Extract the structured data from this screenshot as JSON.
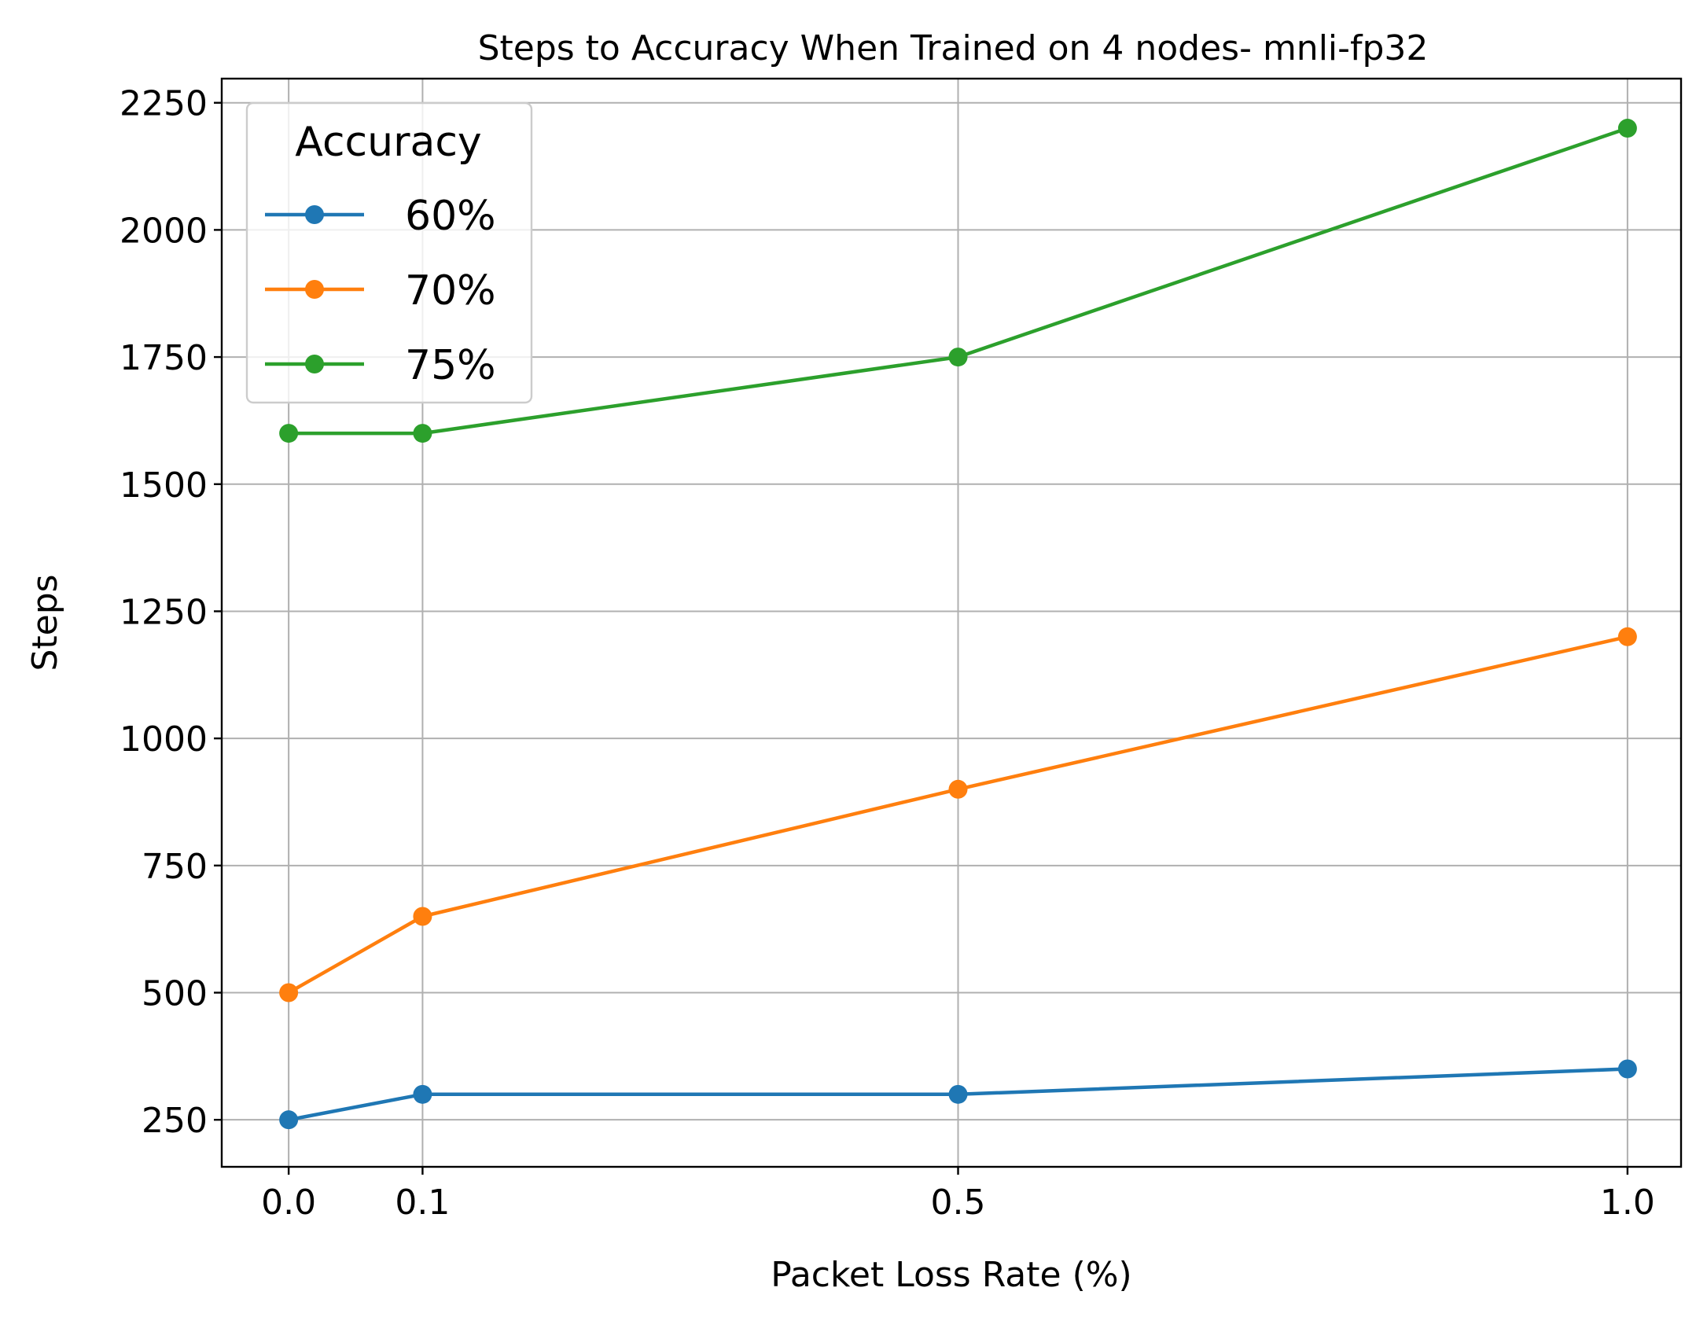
{
  "chart_data": {
    "type": "line",
    "title": "Steps to Accuracy When Trained on 4 nodes- mnli-fp32",
    "xlabel": "Packet Loss Rate (%)",
    "ylabel": "Steps",
    "x": [
      0.0,
      0.1,
      0.5,
      1.0
    ],
    "x_tick_labels": [
      "0.0",
      "0.1",
      "0.5",
      "1.0"
    ],
    "xlim": [
      -0.05,
      1.04
    ],
    "ylim": [
      157.5,
      2297.5
    ],
    "y_ticks": [
      250,
      500,
      750,
      1000,
      1250,
      1500,
      1750,
      2000,
      2250
    ],
    "y_tick_labels": [
      "250",
      "500",
      "750",
      "1000",
      "1250",
      "1500",
      "1750",
      "2000",
      "2250"
    ],
    "grid": true,
    "legend": {
      "title": "Accuracy",
      "placement": "top-left"
    },
    "series": [
      {
        "name": "60%",
        "color": "#1f77b4",
        "marker": "circle",
        "values": [
          250,
          300,
          300,
          350
        ]
      },
      {
        "name": "70%",
        "color": "#ff7f0e",
        "marker": "circle",
        "values": [
          500,
          650,
          900,
          1200
        ]
      },
      {
        "name": "75%",
        "color": "#2ca02c",
        "marker": "circle",
        "values": [
          1600,
          1600,
          1750,
          2200
        ]
      }
    ]
  }
}
